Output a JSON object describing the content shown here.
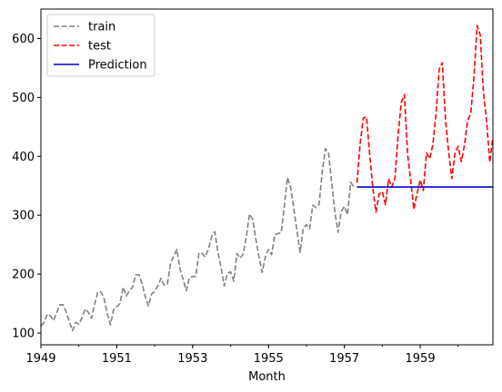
{
  "chart_data": {
    "type": "line",
    "title": "",
    "xlabel": "Month",
    "ylabel": "",
    "xlim": [
      "1949-01",
      "1960-12"
    ],
    "ylim": [
      80,
      650
    ],
    "x_ticks": [
      "1949",
      "1951",
      "1953",
      "1955",
      "1957",
      "1959"
    ],
    "y_ticks": [
      100,
      200,
      300,
      400,
      500,
      600
    ],
    "grid": false,
    "legend_position": "top-left",
    "series": [
      {
        "name": "train",
        "color": "#808080",
        "style": "dashed",
        "start": "1949-01",
        "values": [
          112,
          118,
          132,
          129,
          121,
          135,
          148,
          148,
          136,
          119,
          104,
          118,
          115,
          126,
          141,
          135,
          125,
          149,
          170,
          170,
          158,
          133,
          114,
          140,
          145,
          150,
          178,
          163,
          172,
          178,
          199,
          199,
          184,
          162,
          146,
          166,
          171,
          180,
          193,
          181,
          183,
          218,
          230,
          242,
          209,
          191,
          172,
          194,
          196,
          196,
          236,
          235,
          229,
          243,
          264,
          272,
          237,
          211,
          180,
          201,
          204,
          188,
          235,
          227,
          234,
          264,
          302,
          293,
          259,
          229,
          203,
          229,
          242,
          233,
          267,
          269,
          270,
          315,
          364,
          347,
          312,
          274,
          237,
          278,
          284,
          277,
          317,
          313,
          318,
          374,
          413,
          405,
          355,
          306,
          271,
          306,
          315,
          301,
          356,
          348
        ]
      },
      {
        "name": "test",
        "color": "#ff0000",
        "style": "dashed",
        "start": "1957-05",
        "values": [
          355,
          422,
          465,
          467,
          404,
          347,
          305,
          336,
          340,
          318,
          362,
          348,
          363,
          435,
          491,
          505,
          404,
          359,
          310,
          337,
          360,
          342,
          406,
          396,
          420,
          472,
          548,
          559,
          463,
          407,
          362,
          405,
          417,
          391,
          419,
          461,
          472,
          535,
          622,
          606,
          508,
          461,
          390,
          432
        ]
      },
      {
        "name": "Prediction",
        "color": "#0000cc",
        "style": "solid",
        "start": "1957-05",
        "values": [
          348,
          348,
          348,
          348,
          348,
          348,
          348,
          348,
          348,
          348,
          348,
          348,
          348,
          348,
          348,
          348,
          348,
          348,
          348,
          348,
          348,
          348,
          348,
          348,
          348,
          348,
          348,
          348,
          348,
          348,
          348,
          348,
          348,
          348,
          348,
          348,
          348,
          348,
          348,
          348,
          348,
          348,
          348,
          348
        ]
      }
    ]
  }
}
